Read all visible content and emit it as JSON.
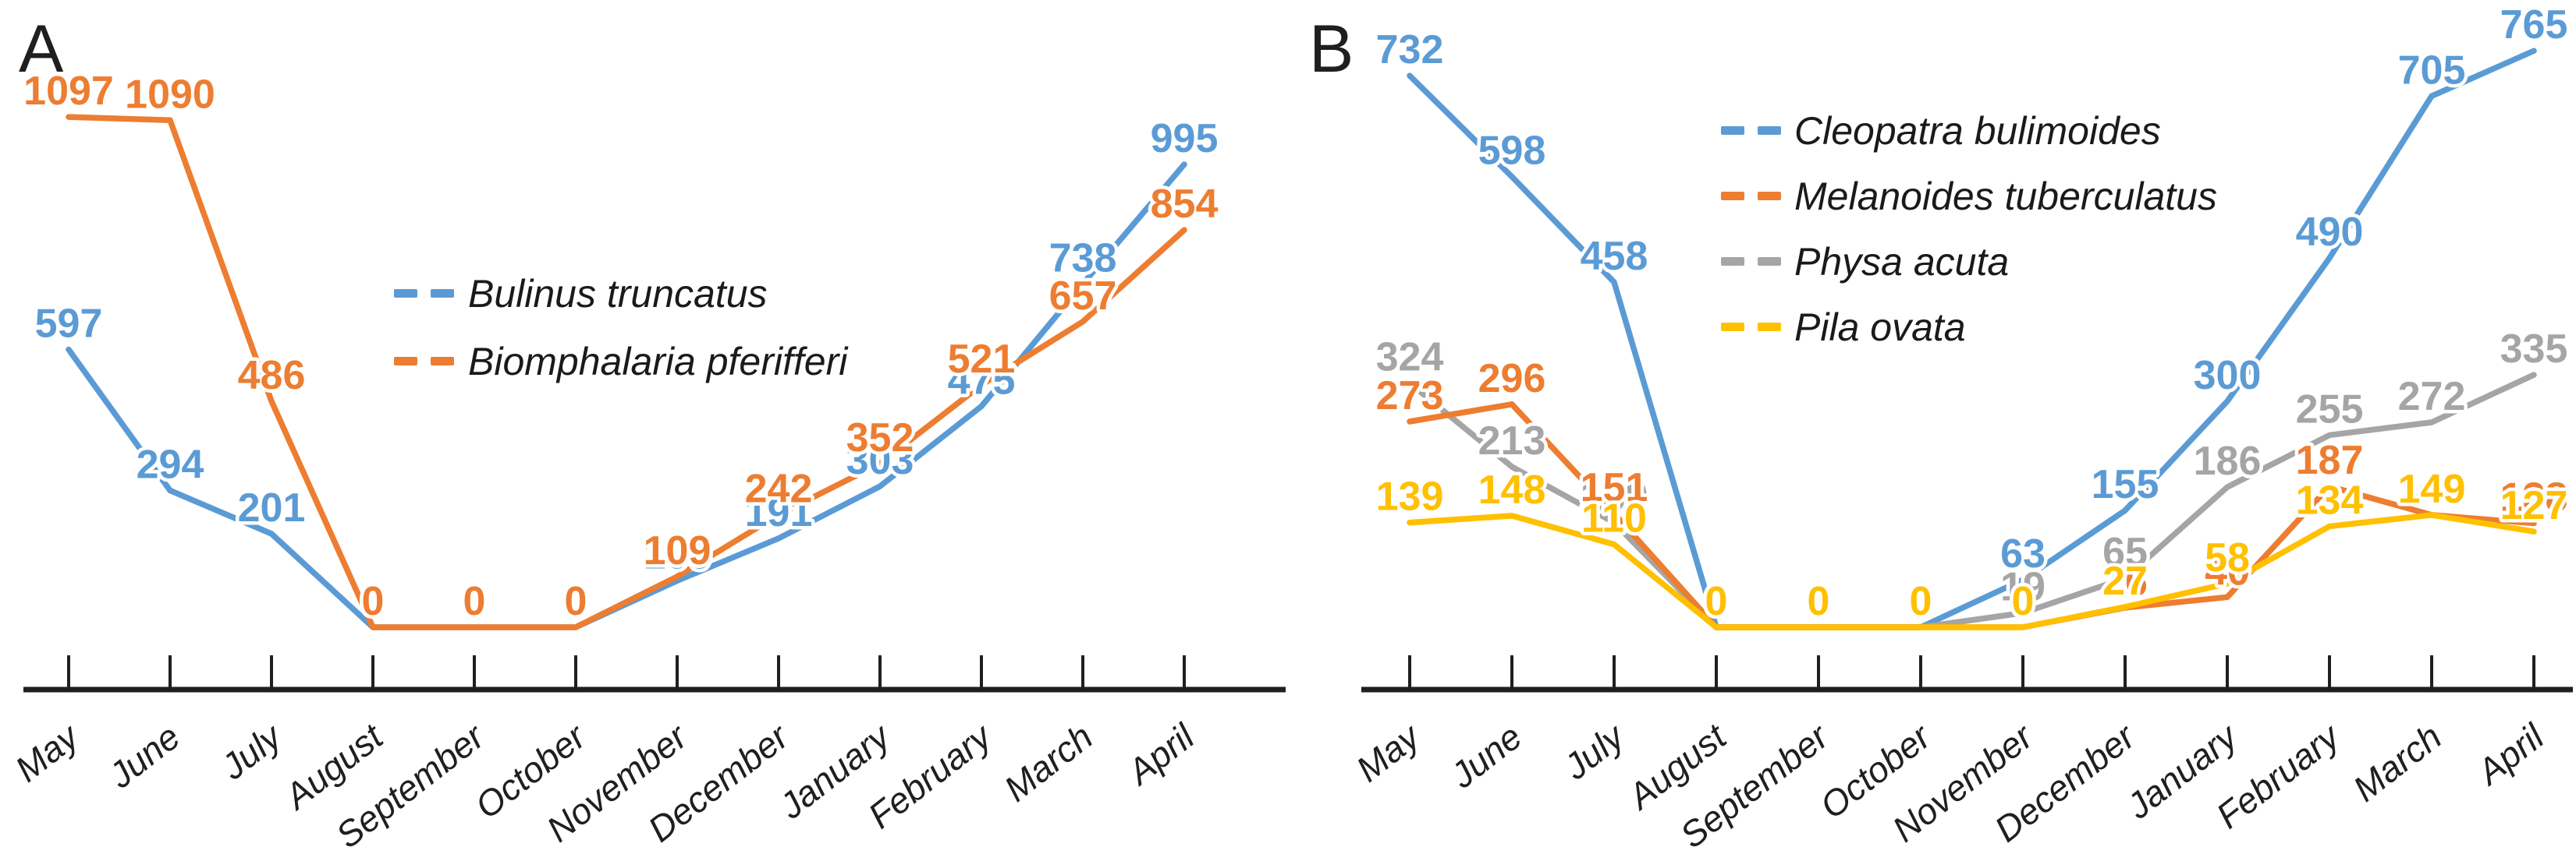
{
  "figure": {
    "background_color": "#ffffff",
    "panels": [
      {
        "panel_letter": "A",
        "legend": [
          {
            "label": "Bulinus truncatus",
            "color": "#5B9BD5"
          },
          {
            "label": "Biomphalaria pferifferi",
            "color": "#ED7D31"
          }
        ]
      },
      {
        "panel_letter": "B",
        "legend": [
          {
            "label": "Cleopatra bulimoides",
            "color": "#5B9BD5"
          },
          {
            "label": "Melanoides tuberculatus",
            "color": "#ED7D31"
          },
          {
            "label": "Physa acuta",
            "color": "#A5A5A5"
          },
          {
            "label": "Pila ovata",
            "color": "#FFC000"
          }
        ]
      }
    ]
  },
  "chart_data": [
    {
      "type": "line",
      "panel": "A",
      "title": "",
      "categories": [
        "May",
        "June",
        "July",
        "August",
        "September",
        "October",
        "November",
        "December",
        "January",
        "February",
        "March",
        "April"
      ],
      "series": [
        {
          "name": "Bulinus truncatus",
          "color": "#5B9BD5",
          "values": [
            597,
            294,
            201,
            0,
            0,
            0,
            100,
            191,
            303,
            475,
            738,
            995
          ]
        },
        {
          "name": "Biomphalaria pferifferi",
          "color": "#ED7D31",
          "values": [
            1097,
            1090,
            486,
            0,
            0,
            0,
            109,
            242,
            352,
            521,
            657,
            854
          ]
        }
      ],
      "ylim": [
        0,
        1180
      ],
      "grid": false,
      "data_labels": true,
      "legend_position": "inside-center-left",
      "x_tick_rotation": -38
    },
    {
      "type": "line",
      "panel": "B",
      "title": "",
      "categories": [
        "May",
        "June",
        "July",
        "August",
        "September",
        "October",
        "November",
        "December",
        "January",
        "February",
        "March",
        "April"
      ],
      "series": [
        {
          "name": "Cleopatra bulimoides",
          "color": "#5B9BD5",
          "values": [
            732,
            598,
            458,
            0,
            0,
            0,
            63,
            155,
            300,
            490,
            705,
            765
          ]
        },
        {
          "name": "Melanoides tuberculatus",
          "color": "#ED7D31",
          "values": [
            273,
            296,
            151,
            0,
            0,
            0,
            0,
            26,
            40,
            187,
            149,
            138
          ]
        },
        {
          "name": "Physa acuta",
          "color": "#A5A5A5",
          "values": [
            324,
            213,
            139,
            0,
            0,
            0,
            19,
            65,
            186,
            255,
            272,
            335
          ]
        },
        {
          "name": "Pila ovata",
          "color": "#FFC000",
          "values": [
            139,
            148,
            110,
            0,
            0,
            0,
            0,
            27,
            58,
            134,
            149,
            127
          ]
        }
      ],
      "ylim": [
        0,
        790
      ],
      "grid": false,
      "data_labels": true,
      "legend_position": "inside-top-center",
      "x_tick_rotation": -38
    }
  ]
}
